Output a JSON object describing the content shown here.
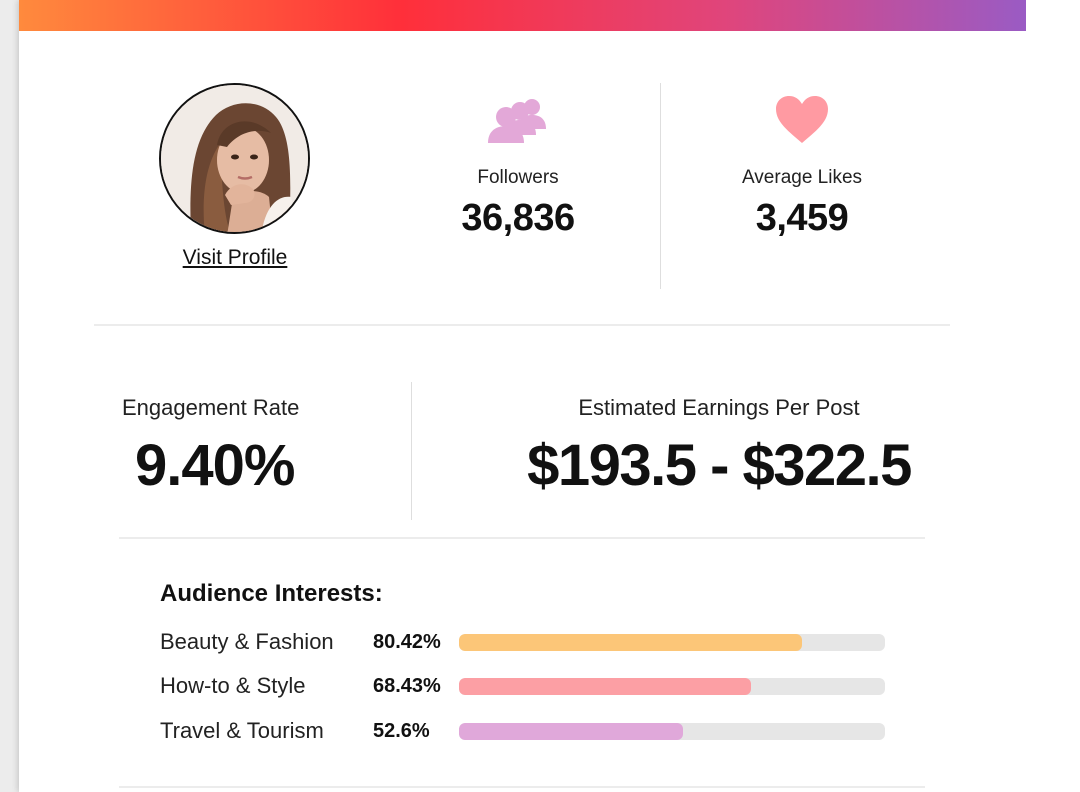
{
  "theme": {
    "gradient": [
      "#ff8a3d",
      "#ff2f3a",
      "#e0457b",
      "#9a5bc4"
    ],
    "followers_icon_color": "#e3a8d8",
    "likes_icon_color": "#ff9aa2"
  },
  "profile": {
    "visit_label": "Visit Profile"
  },
  "stats": {
    "followers": {
      "label": "Followers",
      "value": "36,836",
      "icon": "people-icon"
    },
    "likes": {
      "label": "Average Likes",
      "value": "3,459",
      "icon": "heart-icon"
    }
  },
  "engagement": {
    "label": "Engagement Rate",
    "value": "9.40%"
  },
  "earnings": {
    "label": "Estimated Earnings Per Post",
    "value": "$193.5 - $322.5"
  },
  "interests": {
    "title": "Audience Interests:",
    "items": [
      {
        "name": "Beauty & Fashion",
        "percent_label": "80.42%",
        "percent": 80.42,
        "color": "#fcc678"
      },
      {
        "name": "How-to & Style",
        "percent_label": "68.43%",
        "percent": 68.43,
        "color": "#fc9fa4"
      },
      {
        "name": "Travel & Tourism",
        "percent_label": "52.6%",
        "percent": 52.6,
        "color": "#e0a8da"
      }
    ]
  }
}
